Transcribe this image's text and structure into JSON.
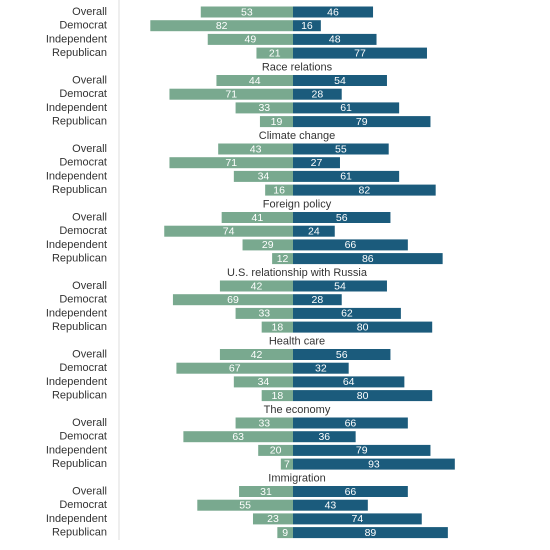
{
  "chart_data": {
    "type": "diverging_bar",
    "row_labels": [
      "Overall",
      "Democrat",
      "Independent",
      "Republican"
    ],
    "left_color": "#79a98f",
    "right_color": "#1b5b7c",
    "groups": [
      {
        "left": [
          53,
          82,
          49,
          21
        ],
        "right": [
          46,
          16,
          48,
          77
        ]
      },
      {
        "title": "Race relations",
        "left": [
          44,
          71,
          33,
          19
        ],
        "right": [
          54,
          28,
          61,
          79
        ]
      },
      {
        "title": "Climate change",
        "left": [
          43,
          71,
          34,
          16
        ],
        "right": [
          55,
          27,
          61,
          82
        ]
      },
      {
        "title": "Foreign policy",
        "left": [
          41,
          74,
          29,
          12
        ],
        "right": [
          56,
          24,
          66,
          86
        ]
      },
      {
        "title": "U.S. relationship with Russia",
        "left": [
          42,
          69,
          33,
          18
        ],
        "right": [
          54,
          28,
          62,
          80
        ]
      },
      {
        "title": "Health care",
        "left": [
          42,
          67,
          34,
          18
        ],
        "right": [
          56,
          32,
          64,
          80
        ]
      },
      {
        "title": "The economy",
        "left": [
          33,
          63,
          20,
          7
        ],
        "right": [
          66,
          36,
          79,
          93
        ]
      },
      {
        "title": "Immigration",
        "left": [
          31,
          55,
          23,
          9
        ],
        "right": [
          66,
          43,
          74,
          89
        ]
      }
    ]
  }
}
